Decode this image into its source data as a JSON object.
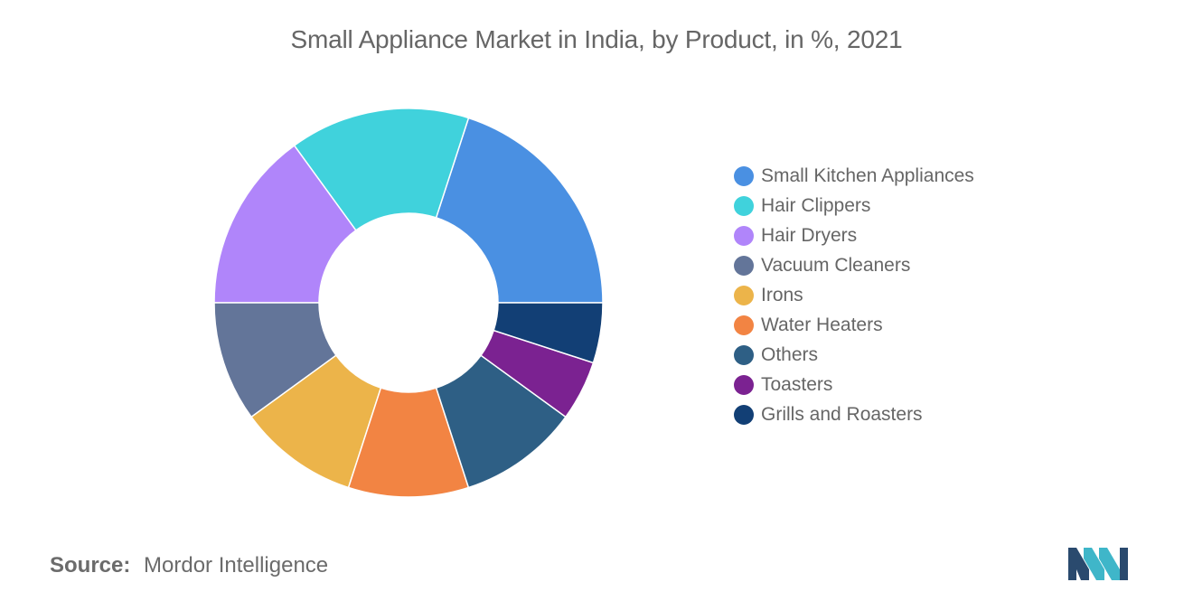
{
  "chart_data": {
    "type": "pie",
    "title": "Small Appliance Market in India, by Product, in %, 2021",
    "donut": true,
    "legend_position": "right",
    "slices": [
      {
        "label": "Small Kitchen Appliances",
        "value": 20,
        "color": "#4a90e2"
      },
      {
        "label": "Hair Clippers",
        "value": 15,
        "color": "#40d2dc"
      },
      {
        "label": "Hair Dryers",
        "value": 15,
        "color": "#b085fa"
      },
      {
        "label": "Vacuum Cleaners",
        "value": 10,
        "color": "#637599"
      },
      {
        "label": "Irons",
        "value": 10,
        "color": "#ecb44a"
      },
      {
        "label": "Water Heaters",
        "value": 10,
        "color": "#f28443"
      },
      {
        "label": "Others",
        "value": 10,
        "color": "#2e5f85"
      },
      {
        "label": "Toasters",
        "value": 5,
        "color": "#7b2291"
      },
      {
        "label": "Grills and Roasters",
        "value": 5,
        "color": "#123f75"
      }
    ]
  },
  "source": {
    "label": "Source:",
    "text": "Mordor Intelligence"
  },
  "logo": {
    "colors": [
      "#2a4a6e",
      "#3fb6c9"
    ]
  }
}
